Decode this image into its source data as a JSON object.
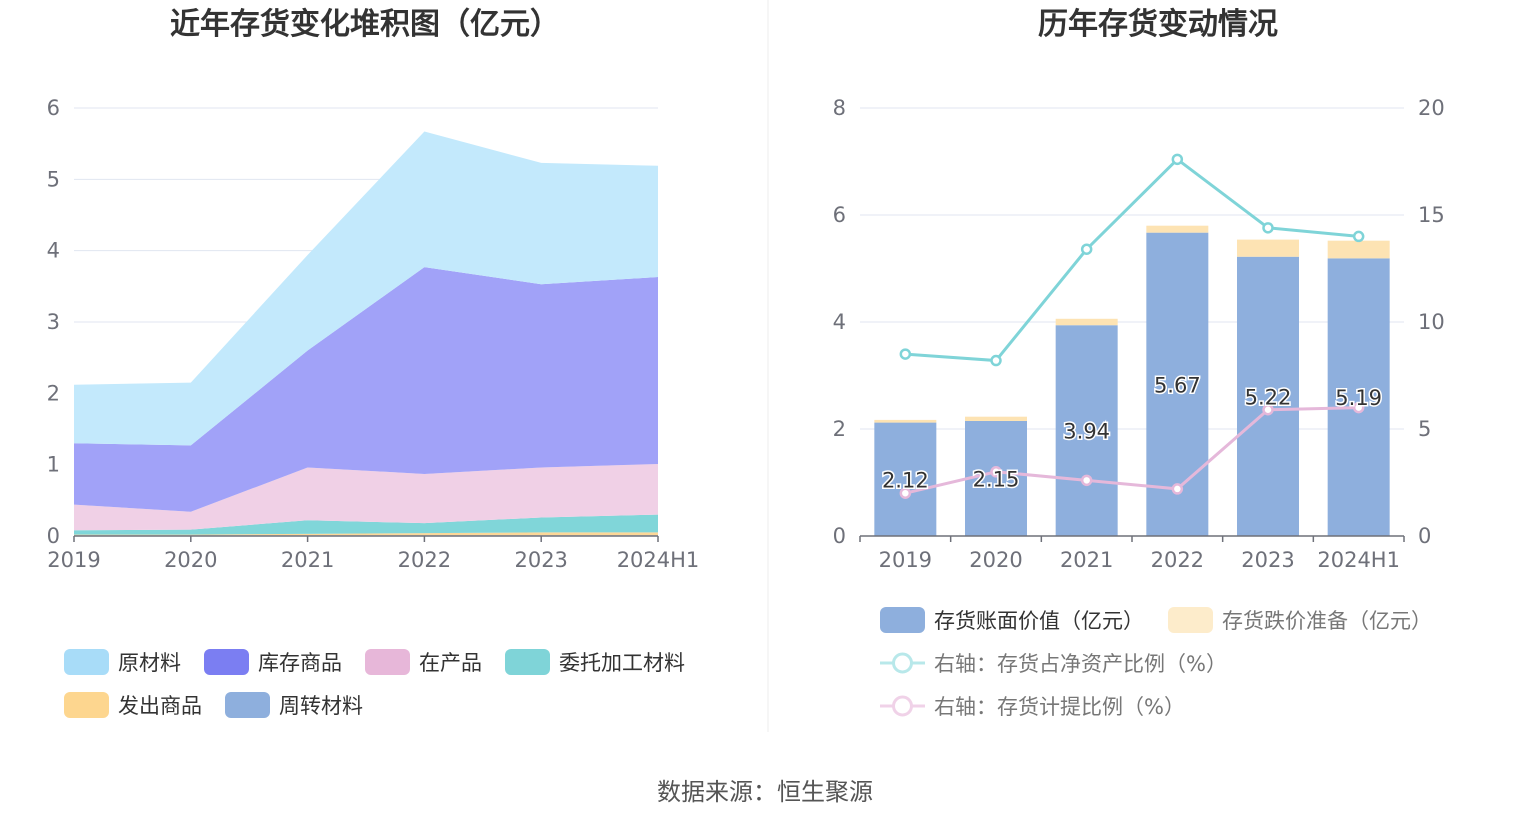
{
  "source": "数据来源：恒生聚源",
  "chart_data": [
    {
      "type": "area",
      "stacked": true,
      "title": "近年存货变化堆积图（亿元）",
      "categories": [
        "2019",
        "2020",
        "2021",
        "2022",
        "2023",
        "2024H1"
      ],
      "yticks": [
        "0",
        "1",
        "2",
        "3",
        "4",
        "5",
        "6"
      ],
      "ylim": [
        0,
        6
      ],
      "grid": true,
      "legend_position": "bottom",
      "series": [
        {
          "name": "周转材料",
          "color": "#8eafdd",
          "values": [
            0.01,
            0.01,
            0.01,
            0.01,
            0.01,
            0.01
          ]
        },
        {
          "name": "发出商品",
          "color": "#fdd797",
          "values": [
            0.01,
            0.01,
            0.02,
            0.03,
            0.04,
            0.04
          ]
        },
        {
          "name": "委托加工材料",
          "color": "#80d6d9",
          "values": [
            0.06,
            0.07,
            0.19,
            0.14,
            0.21,
            0.25
          ]
        },
        {
          "name": "在产品",
          "color": "#f0d0e6",
          "values": [
            0.36,
            0.25,
            0.74,
            0.69,
            0.7,
            0.71
          ]
        },
        {
          "name": "库存商品",
          "color": "#a1a2f8",
          "values": [
            0.86,
            0.93,
            1.64,
            2.9,
            2.57,
            2.62
          ]
        },
        {
          "name": "原材料",
          "color": "#c3e9fc",
          "values": [
            0.82,
            0.88,
            1.34,
            1.9,
            1.7,
            1.56
          ]
        }
      ],
      "legend": [
        {
          "name": "原材料",
          "color": "#a8dcf8"
        },
        {
          "name": "库存商品",
          "color": "#7b7ef2"
        },
        {
          "name": "在产品",
          "color": "#e7b7d9"
        },
        {
          "name": "委托加工材料",
          "color": "#7fd4d8"
        },
        {
          "name": "发出商品",
          "color": "#fdd68f"
        },
        {
          "name": "周转材料",
          "color": "#8eafdd"
        }
      ]
    },
    {
      "type": "bar+line",
      "title": "历年存货变动情况",
      "categories": [
        "2019",
        "2020",
        "2021",
        "2022",
        "2023",
        "2024H1"
      ],
      "ylim_left": [
        0,
        8
      ],
      "ylim_right": [
        0,
        20
      ],
      "yticks_left": [
        "0",
        "2",
        "4",
        "6",
        "8"
      ],
      "yticks_right": [
        "0",
        "5",
        "10",
        "15",
        "20"
      ],
      "grid": true,
      "legend_position": "bottom",
      "bars": [
        {
          "name": "存货账面价值（亿元）",
          "color": "#8eafdd",
          "values": [
            2.12,
            2.15,
            3.94,
            5.67,
            5.22,
            5.19
          ],
          "labels": [
            "2.12",
            "2.15",
            "3.94",
            "5.67",
            "5.22",
            "5.19"
          ]
        },
        {
          "name": "存货跌价准备（亿元）",
          "color": "#fde3b3",
          "values": [
            0.05,
            0.08,
            0.12,
            0.13,
            0.32,
            0.33
          ]
        }
      ],
      "lines": [
        {
          "name": "右轴：存货占净资产比例（%）",
          "color": "#7fd4d8",
          "axis": "right",
          "values": [
            8.5,
            8.2,
            13.4,
            17.6,
            14.4,
            14.0
          ]
        },
        {
          "name": "右轴：存货计提比例（%）",
          "color": "#e5b8da",
          "axis": "right",
          "values": [
            2.0,
            3.0,
            2.6,
            2.2,
            5.9,
            6.0
          ]
        }
      ]
    }
  ]
}
